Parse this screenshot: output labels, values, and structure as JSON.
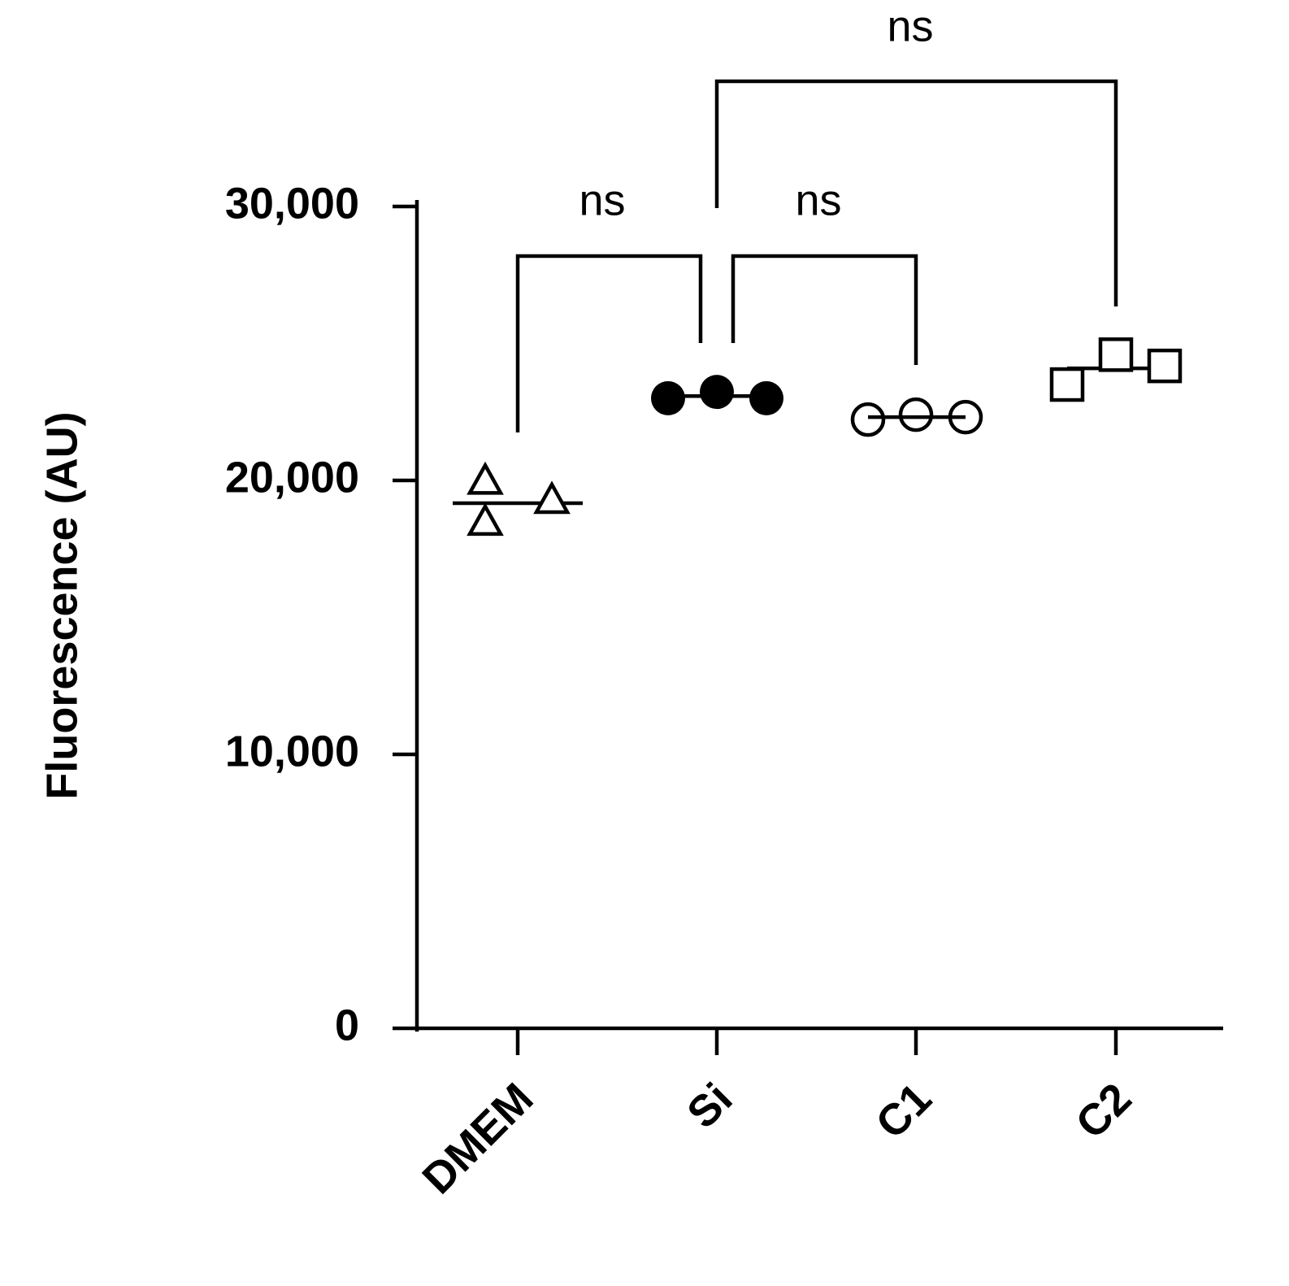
{
  "chart_data": {
    "type": "dot",
    "y_label": "Fluorescence (AU)",
    "categories": [
      "DMEM",
      "Si",
      "C1",
      "C2"
    ],
    "markers": [
      "triangle",
      "filled-circle",
      "open-circle",
      "open-square"
    ],
    "values": [
      [
        19900,
        18400,
        19200
      ],
      [
        23000,
        23230,
        23000
      ],
      [
        22220,
        22400,
        22310
      ],
      [
        23500,
        24590,
        24180
      ]
    ],
    "means": [
      19170,
      23080,
      22310,
      24090
    ],
    "color": "#000000",
    "ylim": [
      0,
      30000
    ],
    "yticks": [
      0,
      {
        "value": 10000,
        "label": "10,000"
      },
      {
        "value": 20000,
        "label": "20,000"
      },
      {
        "value": 30000,
        "label": "30,000"
      }
    ],
    "comparisons": [
      {
        "label": "ns"
      },
      {
        "label": "ns"
      },
      {
        "label": "ns"
      }
    ]
  }
}
